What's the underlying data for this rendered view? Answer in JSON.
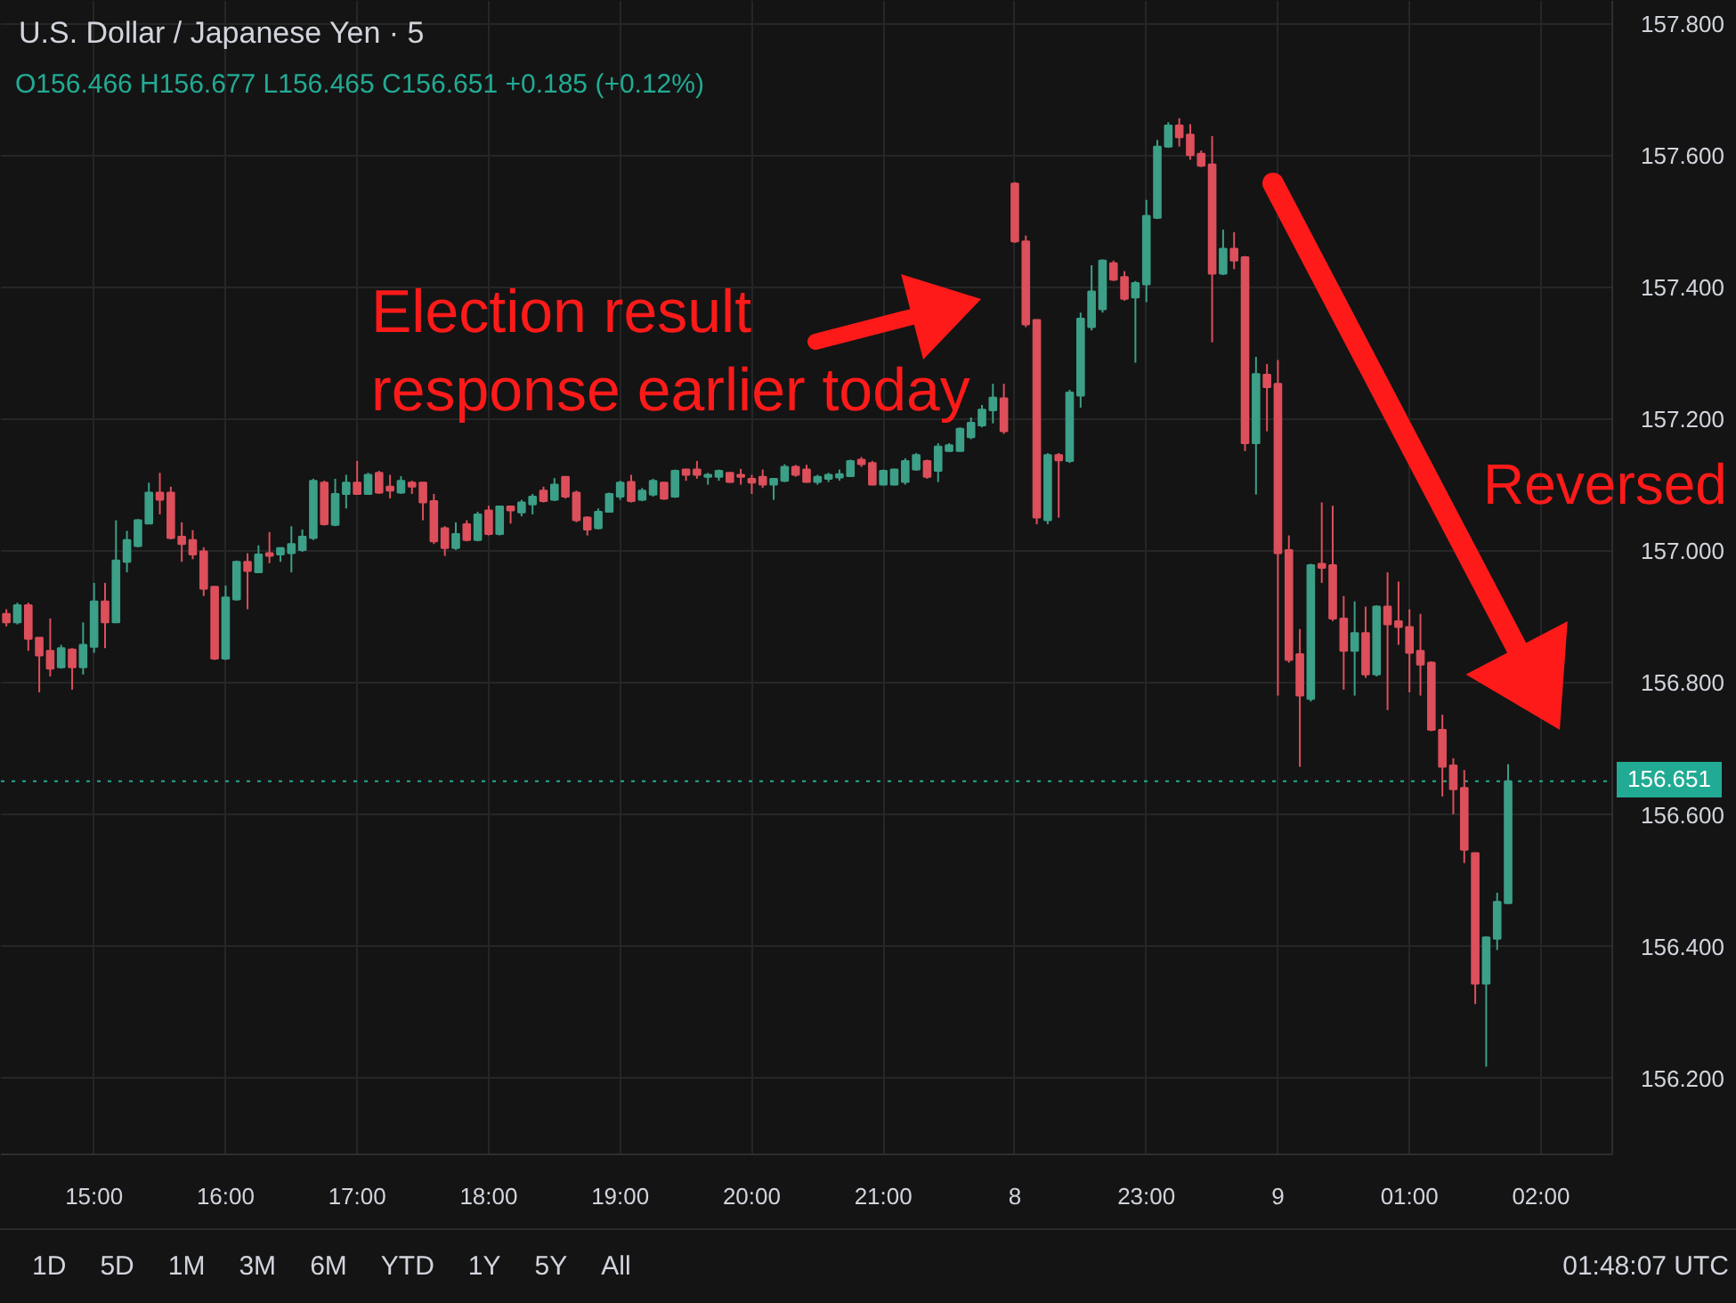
{
  "chart_data": {
    "type": "candlestick",
    "title": "U.S. Dollar / Japanese Yen · 5",
    "subtitle": "O156.466 H156.677 L156.465 C156.651 +0.185 (+0.12%)",
    "categories": [
      null,
      null,
      null,
      null,
      null,
      null,
      null,
      null,
      "15:00",
      null,
      null,
      null,
      null,
      null,
      null,
      null,
      null,
      null,
      null,
      null,
      "16:00",
      null,
      null,
      null,
      null,
      null,
      null,
      null,
      null,
      null,
      null,
      null,
      "17:00",
      null,
      null,
      null,
      null,
      null,
      null,
      null,
      null,
      null,
      null,
      null,
      "18:00",
      null,
      null,
      null,
      null,
      null,
      null,
      null,
      null,
      null,
      null,
      null,
      "19:00",
      null,
      null,
      null,
      null,
      null,
      null,
      null,
      null,
      null,
      null,
      null,
      "20:00",
      null,
      null,
      null,
      null,
      null,
      null,
      null,
      null,
      null,
      null,
      null,
      "21:00",
      null,
      null,
      null,
      null,
      null,
      null,
      null,
      null,
      null,
      null,
      null,
      "8",
      null,
      null,
      null,
      null,
      null,
      null,
      null,
      null,
      null,
      null,
      null,
      "23:00",
      null,
      null,
      null,
      null,
      null,
      null,
      null,
      null,
      null,
      null,
      null,
      "9",
      null,
      null,
      null,
      null,
      null,
      null,
      null,
      null,
      null,
      null,
      null,
      "01:00",
      null,
      null,
      null,
      null,
      null,
      null,
      null,
      null,
      null,
      null,
      null,
      "02:00",
      null,
      null,
      null,
      null,
      null,
      null
    ],
    "ohlc": [
      [
        156.905,
        156.912,
        156.886,
        156.892
      ],
      [
        156.892,
        156.922,
        156.889,
        156.918
      ],
      [
        156.918,
        156.922,
        156.849,
        156.867
      ],
      [
        156.869,
        156.869,
        156.786,
        156.842
      ],
      [
        156.849,
        156.898,
        156.81,
        156.822
      ],
      [
        156.824,
        156.858,
        156.822,
        156.853
      ],
      [
        156.851,
        156.853,
        156.79,
        156.824
      ],
      [
        156.824,
        156.892,
        156.813,
        156.858
      ],
      [
        156.855,
        156.952,
        156.846,
        156.924
      ],
      [
        156.924,
        156.952,
        156.853,
        156.892
      ],
      [
        156.892,
        157.047,
        156.891,
        156.986
      ],
      [
        156.984,
        157.031,
        156.968,
        157.017
      ],
      [
        157.008,
        157.049,
        157.006,
        157.047
      ],
      [
        157.042,
        157.104,
        157.041,
        157.089
      ],
      [
        157.089,
        157.119,
        157.056,
        157.078
      ],
      [
        157.089,
        157.098,
        157.018,
        157.02
      ],
      [
        157.022,
        157.044,
        156.984,
        157.011
      ],
      [
        157.017,
        157.032,
        156.988,
        156.995
      ],
      [
        157.0,
        157.006,
        156.932,
        156.943
      ],
      [
        156.946,
        156.946,
        156.835,
        156.837
      ],
      [
        156.837,
        156.948,
        156.835,
        156.93
      ],
      [
        156.927,
        156.986,
        156.925,
        156.984
      ],
      [
        156.984,
        156.997,
        156.912,
        156.97
      ],
      [
        156.968,
        157.009,
        156.968,
        156.995
      ],
      [
        156.997,
        157.029,
        156.982,
        156.993
      ],
      [
        156.995,
        157.006,
        156.984,
        157.005
      ],
      [
        156.997,
        157.038,
        156.968,
        157.011
      ],
      [
        157.002,
        157.033,
        156.999,
        157.022
      ],
      [
        157.02,
        157.11,
        157.017,
        157.107
      ],
      [
        157.104,
        157.107,
        157.039,
        157.041
      ],
      [
        157.04,
        157.11,
        157.038,
        157.087
      ],
      [
        157.087,
        157.116,
        157.065,
        157.104
      ],
      [
        157.104,
        157.137,
        157.086,
        157.087
      ],
      [
        157.087,
        157.119,
        157.086,
        157.116
      ],
      [
        157.119,
        157.122,
        157.087,
        157.089
      ],
      [
        157.098,
        157.116,
        157.08,
        157.092
      ],
      [
        157.089,
        157.114,
        157.087,
        157.107
      ],
      [
        157.104,
        157.107,
        157.087,
        157.098
      ],
      [
        157.104,
        157.105,
        157.047,
        157.074
      ],
      [
        157.076,
        157.087,
        157.011,
        157.015
      ],
      [
        157.035,
        157.038,
        156.993,
        157.005
      ],
      [
        157.005,
        157.044,
        157.002,
        157.026
      ],
      [
        157.041,
        157.047,
        157.015,
        157.017
      ],
      [
        157.017,
        157.06,
        157.015,
        157.056
      ],
      [
        157.062,
        157.069,
        157.024,
        157.026
      ],
      [
        157.026,
        157.069,
        157.024,
        157.068
      ],
      [
        157.068,
        157.069,
        157.042,
        157.062
      ],
      [
        157.059,
        157.078,
        157.053,
        157.074
      ],
      [
        157.071,
        157.087,
        157.056,
        157.083
      ],
      [
        157.092,
        157.098,
        157.074,
        157.076
      ],
      [
        157.078,
        157.111,
        157.076,
        157.101
      ],
      [
        157.113,
        157.114,
        157.08,
        157.083
      ],
      [
        157.089,
        157.092,
        157.044,
        157.047
      ],
      [
        157.051,
        157.053,
        157.024,
        157.033
      ],
      [
        157.035,
        157.065,
        157.033,
        157.06
      ],
      [
        157.06,
        157.089,
        157.059,
        157.087
      ],
      [
        157.083,
        157.107,
        157.078,
        157.104
      ],
      [
        157.105,
        157.116,
        157.074,
        157.076
      ],
      [
        157.078,
        157.096,
        157.076,
        157.092
      ],
      [
        157.086,
        157.11,
        157.083,
        157.107
      ],
      [
        157.104,
        157.105,
        157.078,
        157.08
      ],
      [
        157.083,
        157.124,
        157.081,
        157.122
      ],
      [
        157.124,
        157.125,
        157.107,
        157.116
      ],
      [
        157.124,
        157.137,
        157.11,
        157.116
      ],
      [
        157.113,
        157.119,
        157.101,
        157.116
      ],
      [
        157.113,
        157.124,
        157.107,
        157.122
      ],
      [
        157.119,
        157.12,
        157.104,
        157.105
      ],
      [
        157.116,
        157.125,
        157.101,
        157.113
      ],
      [
        157.11,
        157.116,
        157.087,
        157.104
      ],
      [
        157.113,
        157.124,
        157.096,
        157.101
      ],
      [
        157.101,
        157.11,
        157.078,
        157.11
      ],
      [
        157.107,
        157.132,
        157.105,
        157.128
      ],
      [
        157.128,
        157.131,
        157.113,
        157.116
      ],
      [
        157.124,
        157.131,
        157.104,
        157.105
      ],
      [
        157.105,
        157.116,
        157.101,
        157.113
      ],
      [
        157.11,
        157.119,
        157.105,
        157.116
      ],
      [
        157.112,
        157.124,
        157.107,
        157.117
      ],
      [
        157.114,
        157.139,
        157.113,
        157.137
      ],
      [
        157.139,
        157.143,
        157.128,
        157.132
      ],
      [
        157.134,
        157.137,
        157.1,
        157.101
      ],
      [
        157.101,
        157.124,
        157.1,
        157.122
      ],
      [
        157.101,
        157.125,
        157.1,
        157.124
      ],
      [
        157.105,
        157.141,
        157.101,
        157.137
      ],
      [
        157.124,
        157.149,
        157.122,
        157.146
      ],
      [
        157.137,
        157.139,
        157.11,
        157.113
      ],
      [
        157.122,
        157.164,
        157.105,
        157.159
      ],
      [
        157.152,
        157.164,
        157.151,
        157.161
      ],
      [
        157.152,
        157.188,
        157.151,
        157.186
      ],
      [
        157.173,
        157.203,
        157.17,
        157.195
      ],
      [
        157.191,
        157.222,
        157.188,
        157.215
      ],
      [
        157.214,
        157.254,
        157.194,
        157.233
      ],
      [
        157.232,
        157.254,
        157.178,
        157.182
      ],
      [
        157.558,
        157.56,
        157.468,
        157.47
      ],
      [
        157.47,
        157.479,
        157.34,
        157.344
      ],
      [
        157.351,
        157.351,
        157.041,
        157.051
      ],
      [
        157.047,
        157.149,
        157.041,
        157.146
      ],
      [
        157.146,
        157.149,
        157.051,
        157.138
      ],
      [
        157.137,
        157.245,
        157.134,
        157.241
      ],
      [
        157.236,
        157.362,
        157.218,
        157.353
      ],
      [
        157.34,
        157.434,
        157.335,
        157.394
      ],
      [
        157.367,
        157.443,
        157.362,
        157.441
      ],
      [
        157.437,
        157.441,
        157.41,
        157.412
      ],
      [
        157.416,
        157.425,
        157.38,
        157.383
      ],
      [
        157.385,
        157.41,
        157.286,
        157.407
      ],
      [
        157.405,
        157.533,
        157.378,
        157.509
      ],
      [
        157.506,
        157.624,
        157.504,
        157.614
      ],
      [
        157.614,
        157.651,
        157.612,
        157.646
      ],
      [
        157.646,
        157.657,
        157.614,
        157.628
      ],
      [
        157.632,
        157.648,
        157.594,
        157.601
      ],
      [
        157.603,
        157.608,
        157.583,
        157.585
      ],
      [
        157.587,
        157.63,
        157.317,
        157.421
      ],
      [
        157.421,
        157.488,
        157.419,
        157.459
      ],
      [
        157.459,
        157.484,
        157.428,
        157.441
      ],
      [
        157.446,
        157.448,
        157.152,
        157.164
      ],
      [
        157.164,
        157.295,
        157.086,
        157.269
      ],
      [
        157.268,
        157.284,
        157.182,
        157.249
      ],
      [
        157.254,
        157.29,
        156.781,
        156.997
      ],
      [
        157.002,
        157.024,
        156.831,
        156.835
      ],
      [
        156.844,
        156.882,
        156.673,
        156.781
      ],
      [
        156.776,
        156.981,
        156.772,
        156.979
      ],
      [
        156.981,
        157.074,
        156.952,
        156.975
      ],
      [
        156.979,
        157.069,
        156.894,
        156.898
      ],
      [
        156.898,
        156.932,
        156.79,
        156.849
      ],
      [
        156.849,
        156.924,
        156.781,
        156.876
      ],
      [
        156.876,
        156.916,
        156.808,
        156.813
      ],
      [
        156.813,
        156.918,
        156.81,
        156.916
      ],
      [
        156.916,
        156.968,
        156.759,
        156.889
      ],
      [
        156.894,
        156.954,
        156.858,
        156.885
      ],
      [
        156.885,
        156.912,
        156.786,
        156.846
      ],
      [
        156.849,
        156.905,
        156.781,
        156.828
      ],
      [
        156.831,
        156.833,
        156.727,
        156.729
      ],
      [
        156.729,
        156.752,
        156.628,
        156.673
      ],
      [
        156.675,
        156.686,
        156.601,
        156.639
      ],
      [
        156.641,
        156.668,
        156.527,
        156.547
      ],
      [
        156.542,
        156.542,
        156.313,
        156.344
      ],
      [
        156.344,
        156.416,
        156.218,
        156.414
      ],
      [
        156.412,
        156.482,
        156.395,
        156.468
      ],
      [
        156.466,
        156.677,
        156.465,
        156.651
      ],
      null,
      null,
      null,
      null,
      null,
      null,
      null,
      null,
      null
    ],
    "colors": [
      "#dc4f5b",
      "#3c9f87",
      "#dc4f5b",
      "#dc4f5b",
      "#dc4f5b",
      "#3c9f87",
      "#dc4f5b",
      "#3c9f87",
      "#3c9f87",
      "#dc4f5b",
      "#3c9f87",
      "#3c9f87",
      "#3c9f87",
      "#3c9f87",
      "#dc4f5b",
      "#dc4f5b",
      "#dc4f5b",
      "#dc4f5b",
      "#dc4f5b",
      "#dc4f5b",
      "#3c9f87",
      "#3c9f87",
      "#dc4f5b",
      "#3c9f87",
      "#dc4f5b",
      "#3c9f87",
      "#3c9f87",
      "#3c9f87",
      "#3c9f87",
      "#dc4f5b",
      "#3c9f87",
      "#3c9f87",
      "#dc4f5b",
      "#3c9f87",
      "#dc4f5b",
      "#dc4f5b",
      "#3c9f87",
      "#dc4f5b",
      "#dc4f5b",
      "#dc4f5b",
      "#dc4f5b",
      "#3c9f87",
      "#dc4f5b",
      "#3c9f87",
      "#dc4f5b",
      "#3c9f87",
      "#dc4f5b",
      "#3c9f87",
      "#3c9f87",
      "#dc4f5b",
      "#3c9f87",
      "#dc4f5b",
      "#dc4f5b",
      "#dc4f5b",
      "#3c9f87",
      "#3c9f87",
      "#3c9f87",
      "#dc4f5b",
      "#3c9f87",
      "#3c9f87",
      "#dc4f5b",
      "#3c9f87",
      "#dc4f5b",
      "#dc4f5b",
      "#3c9f87",
      "#3c9f87",
      "#dc4f5b",
      "#dc4f5b",
      "#dc4f5b",
      "#dc4f5b",
      "#3c9f87",
      "#3c9f87",
      "#dc4f5b",
      "#dc4f5b",
      "#3c9f87",
      "#3c9f87",
      "#3c9f87",
      "#3c9f87",
      "#dc4f5b",
      "#dc4f5b",
      "#3c9f87",
      "#3c9f87",
      "#3c9f87",
      "#3c9f87",
      "#dc4f5b",
      "#3c9f87",
      "#3c9f87",
      "#3c9f87",
      "#3c9f87",
      "#3c9f87",
      "#3c9f87",
      "#dc4f5b",
      "#dc4f5b",
      "#dc4f5b",
      "#dc4f5b",
      "#3c9f87",
      "#dc4f5b",
      "#3c9f87",
      "#3c9f87",
      "#3c9f87",
      "#3c9f87",
      "#dc4f5b",
      "#dc4f5b",
      "#3c9f87",
      "#3c9f87",
      "#3c9f87",
      "#3c9f87",
      "#dc4f5b",
      "#dc4f5b",
      "#dc4f5b",
      "#dc4f5b",
      "#3c9f87",
      "#dc4f5b",
      "#dc4f5b",
      "#3c9f87",
      "#dc4f5b",
      "#dc4f5b",
      "#dc4f5b",
      "#dc4f5b",
      "#3c9f87",
      "#dc4f5b",
      "#dc4f5b",
      "#dc4f5b",
      "#3c9f87",
      "#dc4f5b",
      "#3c9f87",
      "#dc4f5b",
      "#dc4f5b",
      "#dc4f5b",
      "#dc4f5b",
      "#dc4f5b",
      "#dc4f5b",
      "#dc4f5b",
      "#dc4f5b",
      "#dc4f5b",
      "#3c9f87",
      "#3c9f87",
      "#3c9f87",
      null,
      null,
      null,
      null,
      null,
      null,
      null,
      null,
      null
    ],
    "ylim": [
      156.085,
      157.835
    ],
    "yticks": [
      {
        "value": 156.2,
        "label": "156.200"
      },
      {
        "value": 156.4,
        "label": "156.400"
      },
      {
        "value": 156.6,
        "label": "156.600"
      },
      {
        "value": 156.8,
        "label": "156.800"
      },
      {
        "value": 157.0,
        "label": "157.000"
      },
      {
        "value": 157.2,
        "label": "157.200"
      },
      {
        "value": 157.4,
        "label": "157.400"
      },
      {
        "value": 157.6,
        "label": "157.600"
      },
      {
        "value": 157.8,
        "label": "157.800"
      }
    ],
    "grid": true,
    "ref_lines": [
      {
        "axis": "y",
        "value": 156.651,
        "label": "156.651",
        "color": "#22ab94",
        "line_style": "dotted"
      }
    ],
    "annotations": [
      "Election result\nresponse earlier today",
      "Reversed",
      "1D",
      "5D",
      "1M",
      "3M",
      "6M",
      "YTD",
      "1Y",
      "5Y",
      "All",
      "01:48:07 UTC"
    ]
  }
}
